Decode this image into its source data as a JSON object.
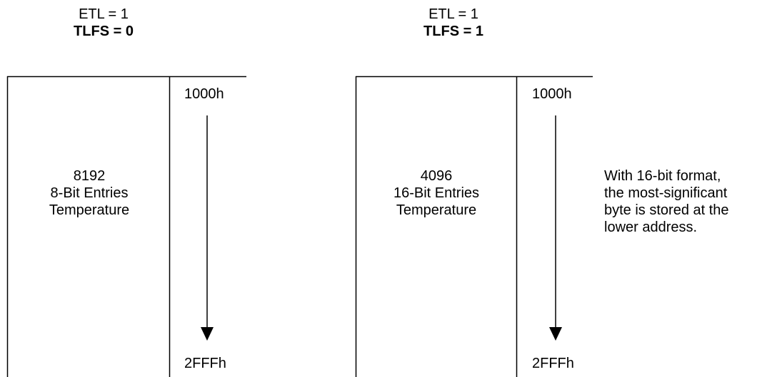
{
  "left": {
    "header_line1": "ETL = 1",
    "header_line2": "TLFS = 0",
    "start_addr": "1000h",
    "end_addr": "2FFFh",
    "count": "8192",
    "entry_type": "8-Bit Entries",
    "content": "Temperature"
  },
  "right": {
    "header_line1": "ETL = 1",
    "header_line2": "TLFS = 1",
    "start_addr": "1000h",
    "end_addr": "2FFFh",
    "count": "4096",
    "entry_type": "16-Bit Entries",
    "content": "Temperature",
    "note": "With 16-bit format,\nthe most-significant\nbyte is stored at the\nlower address."
  }
}
